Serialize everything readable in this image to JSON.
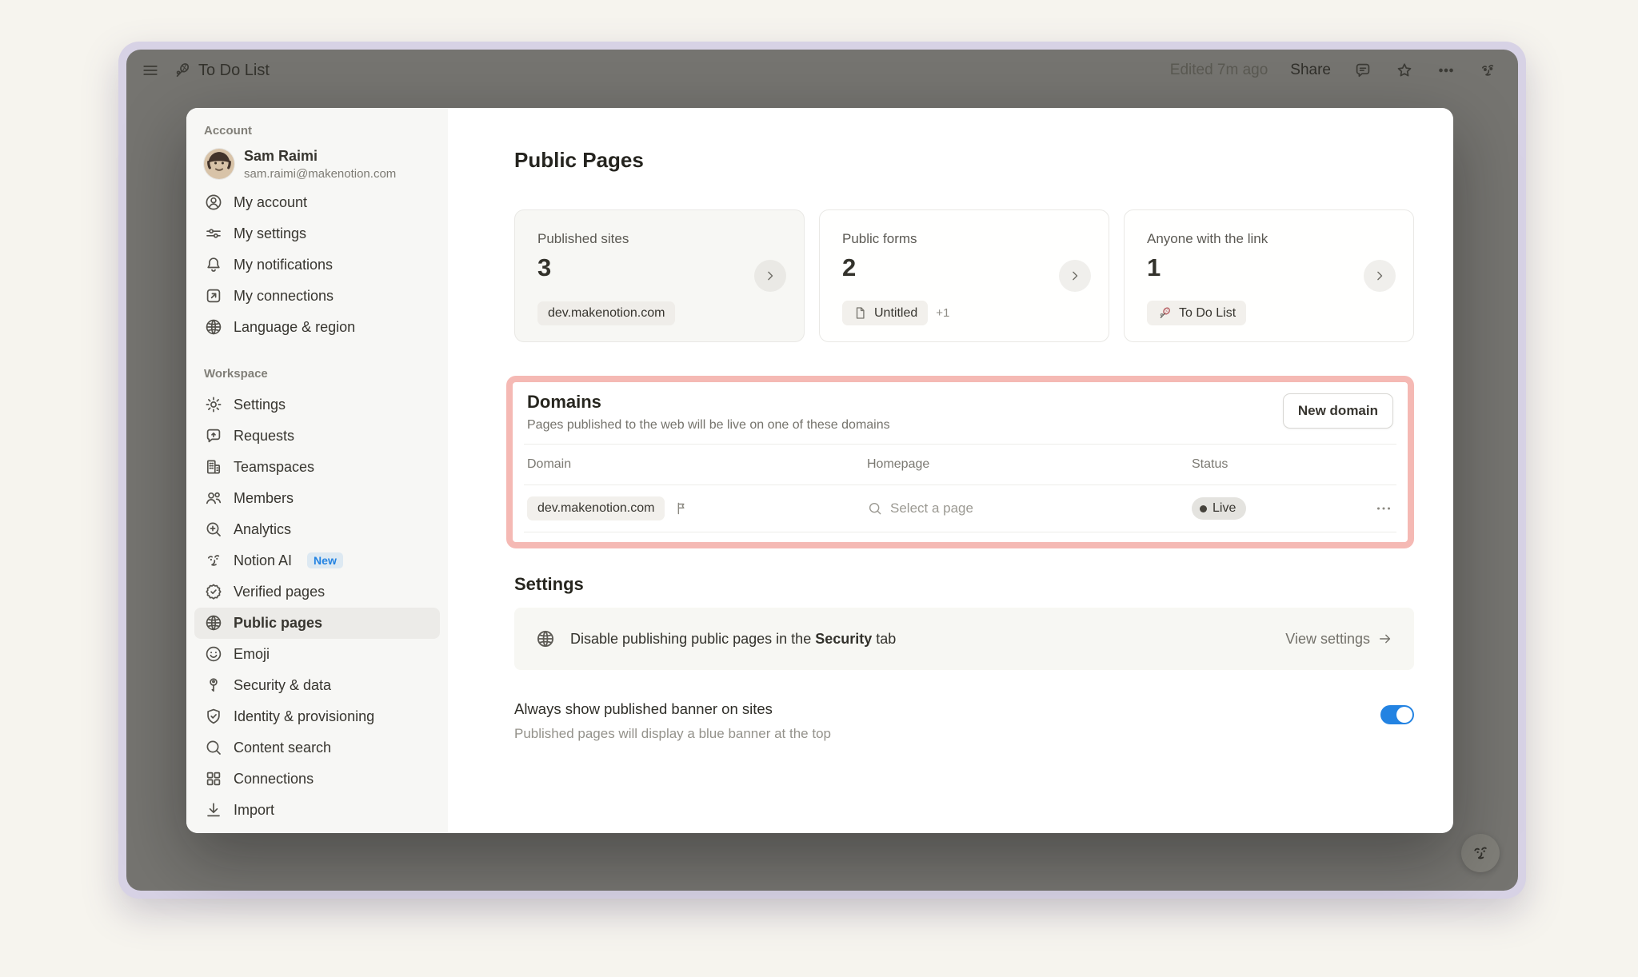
{
  "window": {
    "topbar": {
      "title": "To Do List",
      "edited": "Edited 7m ago",
      "share": "Share"
    }
  },
  "sidebar": {
    "account_header": "Account",
    "profile": {
      "name": "Sam Raimi",
      "email": "sam.raimi@makenotion.com"
    },
    "account_items": [
      {
        "label": "My account",
        "icon": "person-circle"
      },
      {
        "label": "My settings",
        "icon": "sliders"
      },
      {
        "label": "My notifications",
        "icon": "bell"
      },
      {
        "label": "My connections",
        "icon": "arrow-up-right-box"
      },
      {
        "label": "Language & region",
        "icon": "globe"
      }
    ],
    "workspace_header": "Workspace",
    "workspace_items": [
      {
        "label": "Settings",
        "icon": "gear"
      },
      {
        "label": "Requests",
        "icon": "request-bubble"
      },
      {
        "label": "Teamspaces",
        "icon": "building"
      },
      {
        "label": "Members",
        "icon": "people"
      },
      {
        "label": "Analytics",
        "icon": "search-plus"
      },
      {
        "label": "Notion AI",
        "icon": "ai-face",
        "badge": "New"
      },
      {
        "label": "Verified pages",
        "icon": "verified-badge"
      },
      {
        "label": "Public pages",
        "icon": "globe",
        "active": true
      },
      {
        "label": "Emoji",
        "icon": "smiley"
      },
      {
        "label": "Security & data",
        "icon": "key"
      },
      {
        "label": "Identity & provisioning",
        "icon": "shield-check"
      },
      {
        "label": "Content search",
        "icon": "search"
      },
      {
        "label": "Connections",
        "icon": "grid"
      },
      {
        "label": "Import",
        "icon": "import-arrow"
      }
    ]
  },
  "main": {
    "title": "Public Pages",
    "cards": [
      {
        "label": "Published sites",
        "value": "3",
        "chip_label": "dev.makenotion.com",
        "chip_icon": "",
        "extra": ""
      },
      {
        "label": "Public forms",
        "value": "2",
        "chip_label": "Untitled",
        "chip_icon": "page",
        "extra": "+1"
      },
      {
        "label": "Anyone with the link",
        "value": "1",
        "chip_label": "To Do List",
        "chip_icon": "racket",
        "extra": ""
      }
    ],
    "domains": {
      "title": "Domains",
      "subtitle": "Pages published to the web will be live on one of these domains",
      "new_domain_button": "New domain",
      "columns": [
        "Domain",
        "Homepage",
        "Status"
      ],
      "rows": [
        {
          "domain": "dev.makenotion.com",
          "homepage_placeholder": "Select a page",
          "status": "Live"
        }
      ]
    },
    "settings": {
      "title": "Settings",
      "banner": {
        "prefix": "Disable publishing public pages in the ",
        "bold": "Security",
        "suffix": " tab",
        "link": "View settings"
      },
      "toggle": {
        "title": "Always show published banner on sites",
        "subtitle": "Published pages will display a blue banner at the top",
        "on": true
      }
    }
  },
  "colors": {
    "accent_blue": "#2383e2",
    "highlight_pink": "#f5b9b4",
    "live_dot": "#45423b"
  }
}
